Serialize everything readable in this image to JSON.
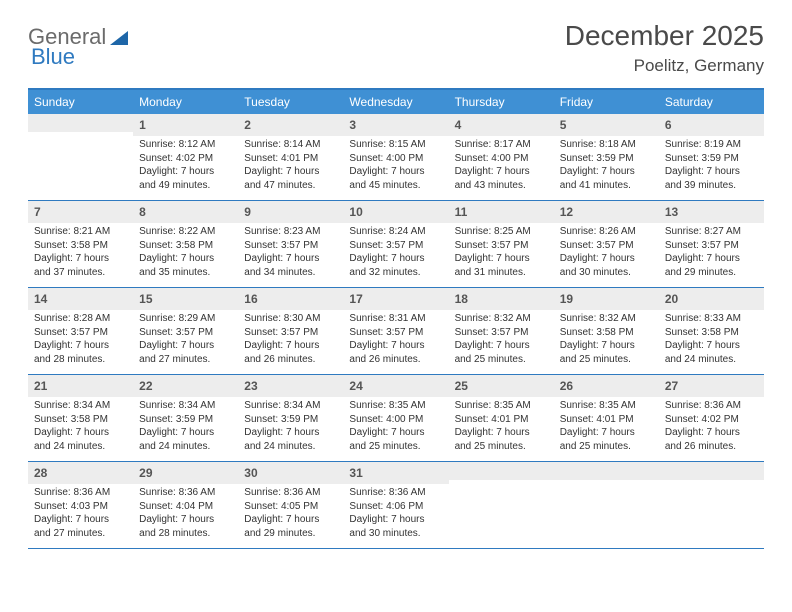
{
  "logo": {
    "text1": "General",
    "text2": "Blue"
  },
  "title": "December 2025",
  "location": "Poelitz, Germany",
  "colors": {
    "header_bg": "#3f90d4",
    "border": "#2f7ac0",
    "daynum_bg": "#ededed",
    "text": "#333333",
    "title_text": "#4a4a4a"
  },
  "dow": [
    "Sunday",
    "Monday",
    "Tuesday",
    "Wednesday",
    "Thursday",
    "Friday",
    "Saturday"
  ],
  "weeks": [
    [
      {
        "n": "",
        "sr": "",
        "ss": "",
        "dl": ""
      },
      {
        "n": "1",
        "sr": "Sunrise: 8:12 AM",
        "ss": "Sunset: 4:02 PM",
        "dl": "Daylight: 7 hours and 49 minutes."
      },
      {
        "n": "2",
        "sr": "Sunrise: 8:14 AM",
        "ss": "Sunset: 4:01 PM",
        "dl": "Daylight: 7 hours and 47 minutes."
      },
      {
        "n": "3",
        "sr": "Sunrise: 8:15 AM",
        "ss": "Sunset: 4:00 PM",
        "dl": "Daylight: 7 hours and 45 minutes."
      },
      {
        "n": "4",
        "sr": "Sunrise: 8:17 AM",
        "ss": "Sunset: 4:00 PM",
        "dl": "Daylight: 7 hours and 43 minutes."
      },
      {
        "n": "5",
        "sr": "Sunrise: 8:18 AM",
        "ss": "Sunset: 3:59 PM",
        "dl": "Daylight: 7 hours and 41 minutes."
      },
      {
        "n": "6",
        "sr": "Sunrise: 8:19 AM",
        "ss": "Sunset: 3:59 PM",
        "dl": "Daylight: 7 hours and 39 minutes."
      }
    ],
    [
      {
        "n": "7",
        "sr": "Sunrise: 8:21 AM",
        "ss": "Sunset: 3:58 PM",
        "dl": "Daylight: 7 hours and 37 minutes."
      },
      {
        "n": "8",
        "sr": "Sunrise: 8:22 AM",
        "ss": "Sunset: 3:58 PM",
        "dl": "Daylight: 7 hours and 35 minutes."
      },
      {
        "n": "9",
        "sr": "Sunrise: 8:23 AM",
        "ss": "Sunset: 3:57 PM",
        "dl": "Daylight: 7 hours and 34 minutes."
      },
      {
        "n": "10",
        "sr": "Sunrise: 8:24 AM",
        "ss": "Sunset: 3:57 PM",
        "dl": "Daylight: 7 hours and 32 minutes."
      },
      {
        "n": "11",
        "sr": "Sunrise: 8:25 AM",
        "ss": "Sunset: 3:57 PM",
        "dl": "Daylight: 7 hours and 31 minutes."
      },
      {
        "n": "12",
        "sr": "Sunrise: 8:26 AM",
        "ss": "Sunset: 3:57 PM",
        "dl": "Daylight: 7 hours and 30 minutes."
      },
      {
        "n": "13",
        "sr": "Sunrise: 8:27 AM",
        "ss": "Sunset: 3:57 PM",
        "dl": "Daylight: 7 hours and 29 minutes."
      }
    ],
    [
      {
        "n": "14",
        "sr": "Sunrise: 8:28 AM",
        "ss": "Sunset: 3:57 PM",
        "dl": "Daylight: 7 hours and 28 minutes."
      },
      {
        "n": "15",
        "sr": "Sunrise: 8:29 AM",
        "ss": "Sunset: 3:57 PM",
        "dl": "Daylight: 7 hours and 27 minutes."
      },
      {
        "n": "16",
        "sr": "Sunrise: 8:30 AM",
        "ss": "Sunset: 3:57 PM",
        "dl": "Daylight: 7 hours and 26 minutes."
      },
      {
        "n": "17",
        "sr": "Sunrise: 8:31 AM",
        "ss": "Sunset: 3:57 PM",
        "dl": "Daylight: 7 hours and 26 minutes."
      },
      {
        "n": "18",
        "sr": "Sunrise: 8:32 AM",
        "ss": "Sunset: 3:57 PM",
        "dl": "Daylight: 7 hours and 25 minutes."
      },
      {
        "n": "19",
        "sr": "Sunrise: 8:32 AM",
        "ss": "Sunset: 3:58 PM",
        "dl": "Daylight: 7 hours and 25 minutes."
      },
      {
        "n": "20",
        "sr": "Sunrise: 8:33 AM",
        "ss": "Sunset: 3:58 PM",
        "dl": "Daylight: 7 hours and 24 minutes."
      }
    ],
    [
      {
        "n": "21",
        "sr": "Sunrise: 8:34 AM",
        "ss": "Sunset: 3:58 PM",
        "dl": "Daylight: 7 hours and 24 minutes."
      },
      {
        "n": "22",
        "sr": "Sunrise: 8:34 AM",
        "ss": "Sunset: 3:59 PM",
        "dl": "Daylight: 7 hours and 24 minutes."
      },
      {
        "n": "23",
        "sr": "Sunrise: 8:34 AM",
        "ss": "Sunset: 3:59 PM",
        "dl": "Daylight: 7 hours and 24 minutes."
      },
      {
        "n": "24",
        "sr": "Sunrise: 8:35 AM",
        "ss": "Sunset: 4:00 PM",
        "dl": "Daylight: 7 hours and 25 minutes."
      },
      {
        "n": "25",
        "sr": "Sunrise: 8:35 AM",
        "ss": "Sunset: 4:01 PM",
        "dl": "Daylight: 7 hours and 25 minutes."
      },
      {
        "n": "26",
        "sr": "Sunrise: 8:35 AM",
        "ss": "Sunset: 4:01 PM",
        "dl": "Daylight: 7 hours and 25 minutes."
      },
      {
        "n": "27",
        "sr": "Sunrise: 8:36 AM",
        "ss": "Sunset: 4:02 PM",
        "dl": "Daylight: 7 hours and 26 minutes."
      }
    ],
    [
      {
        "n": "28",
        "sr": "Sunrise: 8:36 AM",
        "ss": "Sunset: 4:03 PM",
        "dl": "Daylight: 7 hours and 27 minutes."
      },
      {
        "n": "29",
        "sr": "Sunrise: 8:36 AM",
        "ss": "Sunset: 4:04 PM",
        "dl": "Daylight: 7 hours and 28 minutes."
      },
      {
        "n": "30",
        "sr": "Sunrise: 8:36 AM",
        "ss": "Sunset: 4:05 PM",
        "dl": "Daylight: 7 hours and 29 minutes."
      },
      {
        "n": "31",
        "sr": "Sunrise: 8:36 AM",
        "ss": "Sunset: 4:06 PM",
        "dl": "Daylight: 7 hours and 30 minutes."
      },
      {
        "n": "",
        "sr": "",
        "ss": "",
        "dl": ""
      },
      {
        "n": "",
        "sr": "",
        "ss": "",
        "dl": ""
      },
      {
        "n": "",
        "sr": "",
        "ss": "",
        "dl": ""
      }
    ]
  ]
}
